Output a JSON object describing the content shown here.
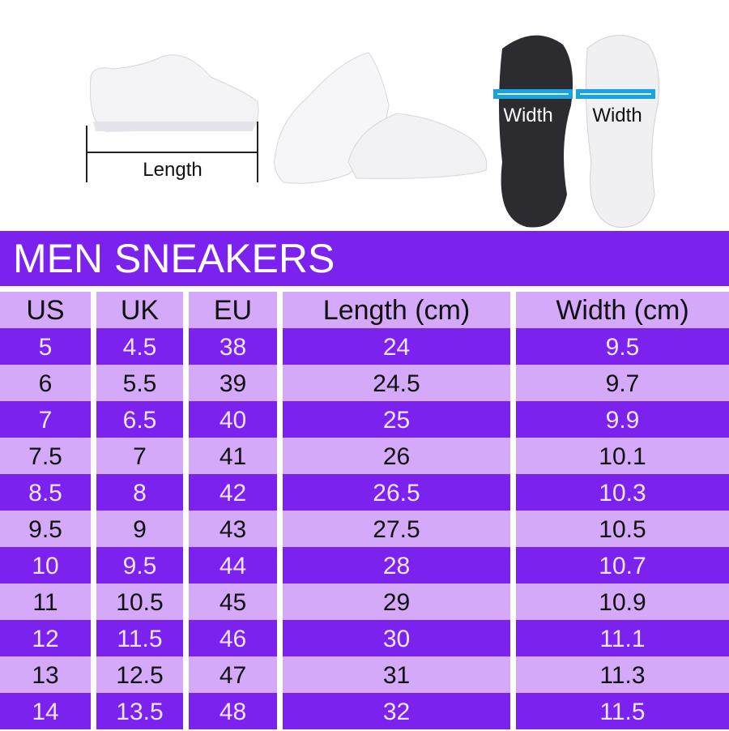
{
  "figure": {
    "length_label": "Length",
    "width_label_dark": "Width",
    "width_label_light": "Width",
    "colors": {
      "dark_purple": "#7b22ee",
      "light_purple": "#d4a9f9",
      "width_bar": "#1aa3e0"
    }
  },
  "title": "MEN SNEAKERS",
  "table": {
    "headers": [
      "US",
      "UK",
      "EU",
      "Length (cm)",
      "Width (cm)"
    ],
    "rows": [
      [
        "5",
        "4.5",
        "38",
        "24",
        "9.5"
      ],
      [
        "6",
        "5.5",
        "39",
        "24.5",
        "9.7"
      ],
      [
        "7",
        "6.5",
        "40",
        "25",
        "9.9"
      ],
      [
        "7.5",
        "7",
        "41",
        "26",
        "10.1"
      ],
      [
        "8.5",
        "8",
        "42",
        "26.5",
        "10.3"
      ],
      [
        "9.5",
        "9",
        "43",
        "27.5",
        "10.5"
      ],
      [
        "10",
        "9.5",
        "44",
        "28",
        "10.7"
      ],
      [
        "11",
        "10.5",
        "45",
        "29",
        "10.9"
      ],
      [
        "12",
        "11.5",
        "46",
        "30",
        "11.1"
      ],
      [
        "13",
        "12.5",
        "47",
        "31",
        "11.3"
      ],
      [
        "14",
        "13.5",
        "48",
        "32",
        "11.5"
      ]
    ]
  }
}
